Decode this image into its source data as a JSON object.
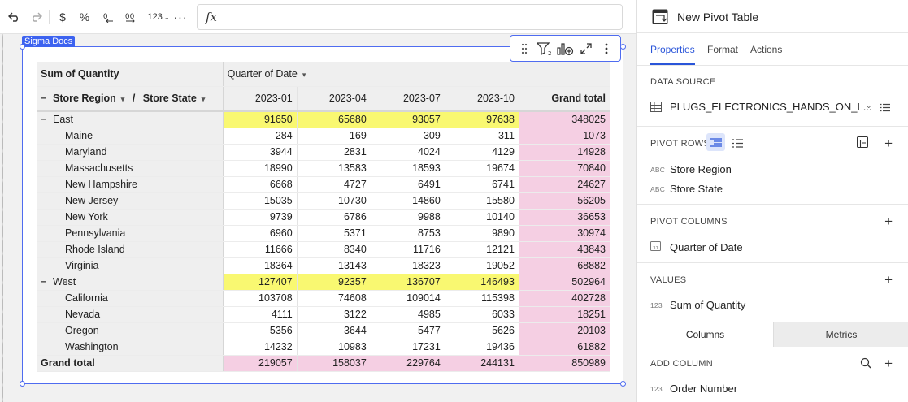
{
  "toolbar": {
    "undo_icon": "undo-icon",
    "redo_icon": "redo-icon",
    "currency": "$",
    "percent": "%",
    "format_number": "123",
    "more": "···",
    "fx": "fx"
  },
  "element": {
    "tag": "Sigma Docs"
  },
  "pivot": {
    "corner_label": "Sum of Quantity",
    "column_field": "Quarter of Date",
    "row_field_1": "Store Region",
    "row_sep": "/",
    "row_field_2": "Store State",
    "columns": [
      "2023-01",
      "2023-04",
      "2023-07",
      "2023-10",
      "Grand total"
    ],
    "rows": [
      {
        "label": "East",
        "group": true,
        "values": [
          "91650",
          "65680",
          "93057",
          "97638",
          "348025"
        ]
      },
      {
        "label": "Maine",
        "values": [
          "284",
          "169",
          "309",
          "311",
          "1073"
        ]
      },
      {
        "label": "Maryland",
        "values": [
          "3944",
          "2831",
          "4024",
          "4129",
          "14928"
        ]
      },
      {
        "label": "Massachusetts",
        "values": [
          "18990",
          "13583",
          "18593",
          "19674",
          "70840"
        ]
      },
      {
        "label": "New Hampshire",
        "values": [
          "6668",
          "4727",
          "6491",
          "6741",
          "24627"
        ]
      },
      {
        "label": "New Jersey",
        "values": [
          "15035",
          "10730",
          "14860",
          "15580",
          "56205"
        ]
      },
      {
        "label": "New York",
        "values": [
          "9739",
          "6786",
          "9988",
          "10140",
          "36653"
        ]
      },
      {
        "label": "Pennsylvania",
        "values": [
          "6960",
          "5371",
          "8753",
          "9890",
          "30974"
        ]
      },
      {
        "label": "Rhode Island",
        "values": [
          "11666",
          "8340",
          "11716",
          "12121",
          "43843"
        ]
      },
      {
        "label": "Virginia",
        "values": [
          "18364",
          "13143",
          "18323",
          "19052",
          "68882"
        ]
      },
      {
        "label": "West",
        "group": true,
        "values": [
          "127407",
          "92357",
          "136707",
          "146493",
          "502964"
        ]
      },
      {
        "label": "California",
        "values": [
          "103708",
          "74608",
          "109014",
          "115398",
          "402728"
        ]
      },
      {
        "label": "Nevada",
        "values": [
          "4111",
          "3122",
          "4985",
          "6033",
          "18251"
        ]
      },
      {
        "label": "Oregon",
        "values": [
          "5356",
          "3644",
          "5477",
          "5626",
          "20103"
        ]
      },
      {
        "label": "Washington",
        "values": [
          "14232",
          "10983",
          "17231",
          "19436",
          "61882"
        ]
      }
    ],
    "grand_total": {
      "label": "Grand total",
      "values": [
        "219057",
        "158037",
        "229764",
        "244131",
        "850989"
      ]
    },
    "colors": {
      "subtotal_highlight": "#f9f871",
      "grand_total_bg": "#f5cfe3"
    }
  },
  "panel": {
    "title": "New Pivot Table",
    "tabs": [
      "Properties",
      "Format",
      "Actions"
    ],
    "data_source_title": "DATA SOURCE",
    "data_source_name": "PLUGS_ELECTRONICS_HANDS_ON_L...",
    "pivot_rows_title": "PIVOT ROWS",
    "pivot_rows": [
      {
        "type": "ABC",
        "label": "Store Region"
      },
      {
        "type": "ABC",
        "label": "Store State"
      }
    ],
    "pivot_columns_title": "PIVOT COLUMNS",
    "pivot_columns": [
      {
        "type": "calendar-icon",
        "label": "Quarter of Date"
      }
    ],
    "values_title": "VALUES",
    "values": [
      {
        "type": "123",
        "label": "Sum of Quantity"
      }
    ],
    "subtabs": [
      "Columns",
      "Metrics"
    ],
    "add_column_title": "ADD COLUMN",
    "add_columns": [
      {
        "type": "123",
        "label": "Order Number"
      }
    ],
    "accent_color": "#2a55d9"
  }
}
